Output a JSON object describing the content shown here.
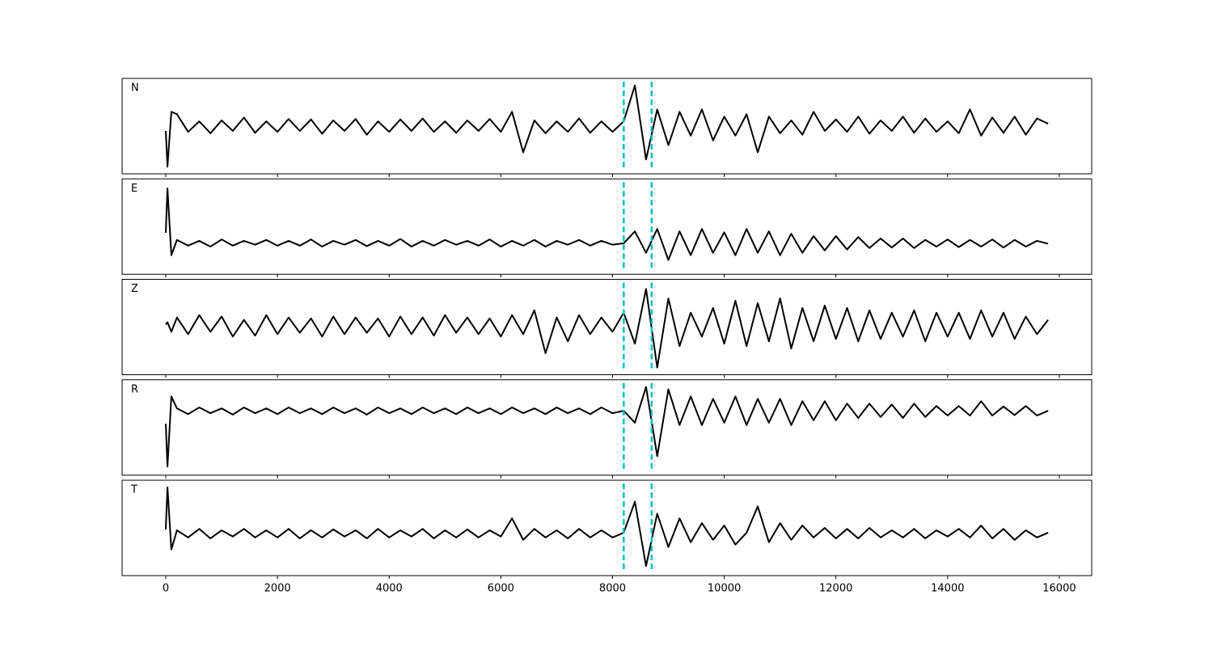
{
  "chart_data": {
    "type": "line",
    "color": "#000000",
    "vline_color": "#00bfbf",
    "xlim": [
      -782,
      16580
    ],
    "xticks": [
      0,
      2000,
      4000,
      6000,
      8000,
      10000,
      12000,
      14000,
      16000
    ],
    "ylim": [
      -1,
      1
    ],
    "vlines": [
      8200,
      8700
    ],
    "x": [
      0,
      30,
      100,
      200,
      400,
      600,
      800,
      1000,
      1200,
      1400,
      1600,
      1800,
      2000,
      2200,
      2400,
      2600,
      2800,
      3000,
      3200,
      3400,
      3600,
      3800,
      4000,
      4200,
      4400,
      4600,
      4800,
      5000,
      5200,
      5400,
      5600,
      5800,
      6000,
      6200,
      6400,
      6600,
      6800,
      7000,
      7200,
      7400,
      7600,
      7800,
      8000,
      8200,
      8400,
      8600,
      8800,
      9000,
      9200,
      9400,
      9600,
      9800,
      10000,
      10200,
      10400,
      10600,
      10800,
      11000,
      11200,
      11400,
      11600,
      11800,
      12000,
      12200,
      12400,
      12600,
      12800,
      13000,
      13200,
      13400,
      13600,
      13800,
      14000,
      14200,
      14400,
      14600,
      14800,
      15000,
      15200,
      15400,
      15600,
      15800
    ],
    "panels": [
      {
        "label": "N",
        "values": [
          -0.1,
          -0.85,
          0.3,
          0.25,
          -0.12,
          0.1,
          -0.15,
          0.12,
          -0.1,
          0.18,
          -0.14,
          0.1,
          -0.12,
          0.15,
          -0.1,
          0.14,
          -0.16,
          0.12,
          -0.1,
          0.15,
          -0.18,
          0.1,
          -0.12,
          0.14,
          -0.1,
          0.16,
          -0.12,
          0.1,
          -0.14,
          0.12,
          -0.1,
          0.15,
          -0.12,
          0.3,
          -0.55,
          0.12,
          -0.15,
          0.1,
          -0.12,
          0.16,
          -0.14,
          0.1,
          -0.12,
          0.1,
          0.85,
          -0.7,
          0.35,
          -0.4,
          0.3,
          -0.2,
          0.35,
          -0.3,
          0.2,
          -0.2,
          0.25,
          -0.55,
          0.2,
          -0.15,
          0.12,
          -0.18,
          0.3,
          -0.1,
          0.14,
          -0.12,
          0.2,
          -0.16,
          0.12,
          -0.1,
          0.2,
          -0.14,
          0.16,
          -0.12,
          0.1,
          -0.15,
          0.35,
          -0.2,
          0.18,
          -0.14,
          0.2,
          -0.18,
          0.16,
          0.05
        ]
      },
      {
        "label": "E",
        "values": [
          -0.13,
          0.8,
          -0.6,
          -0.28,
          -0.4,
          -0.3,
          -0.42,
          -0.27,
          -0.4,
          -0.3,
          -0.38,
          -0.28,
          -0.4,
          -0.3,
          -0.4,
          -0.27,
          -0.42,
          -0.3,
          -0.38,
          -0.28,
          -0.41,
          -0.3,
          -0.4,
          -0.26,
          -0.42,
          -0.3,
          -0.4,
          -0.28,
          -0.38,
          -0.3,
          -0.4,
          -0.27,
          -0.42,
          -0.3,
          -0.4,
          -0.28,
          -0.42,
          -0.3,
          -0.38,
          -0.28,
          -0.4,
          -0.3,
          -0.38,
          -0.35,
          -0.1,
          -0.55,
          -0.05,
          -0.7,
          -0.1,
          -0.6,
          -0.05,
          -0.55,
          -0.12,
          -0.6,
          -0.05,
          -0.55,
          -0.1,
          -0.6,
          -0.15,
          -0.55,
          -0.2,
          -0.5,
          -0.2,
          -0.48,
          -0.22,
          -0.45,
          -0.25,
          -0.44,
          -0.25,
          -0.45,
          -0.28,
          -0.42,
          -0.27,
          -0.43,
          -0.28,
          -0.42,
          -0.27,
          -0.44,
          -0.28,
          -0.42,
          -0.3,
          -0.36
        ]
      },
      {
        "label": "Z",
        "values": [
          0.05,
          0.1,
          -0.1,
          0.2,
          -0.15,
          0.25,
          -0.1,
          0.22,
          -0.2,
          0.15,
          -0.18,
          0.25,
          -0.15,
          0.2,
          -0.12,
          0.18,
          -0.2,
          0.22,
          -0.15,
          0.2,
          -0.12,
          0.18,
          -0.2,
          0.22,
          -0.15,
          0.2,
          -0.18,
          0.25,
          -0.12,
          0.2,
          -0.15,
          0.18,
          -0.2,
          0.25,
          -0.15,
          0.35,
          -0.55,
          0.2,
          -0.3,
          0.25,
          -0.15,
          0.2,
          -0.1,
          0.3,
          -0.35,
          0.8,
          -0.85,
          0.6,
          -0.4,
          0.3,
          -0.2,
          0.4,
          -0.35,
          0.55,
          -0.4,
          0.5,
          -0.3,
          0.6,
          -0.45,
          0.4,
          -0.3,
          0.45,
          -0.25,
          0.4,
          -0.3,
          0.35,
          -0.25,
          0.3,
          -0.2,
          0.35,
          -0.3,
          0.3,
          -0.2,
          0.3,
          -0.25,
          0.35,
          -0.2,
          0.3,
          -0.25,
          0.22,
          -0.15,
          0.15
        ]
      },
      {
        "label": "R",
        "values": [
          0.08,
          -0.82,
          0.65,
          0.4,
          0.28,
          0.42,
          0.3,
          0.4,
          0.27,
          0.42,
          0.3,
          0.4,
          0.28,
          0.42,
          0.3,
          0.4,
          0.28,
          0.42,
          0.3,
          0.4,
          0.27,
          0.42,
          0.3,
          0.4,
          0.28,
          0.42,
          0.3,
          0.4,
          0.28,
          0.42,
          0.3,
          0.4,
          0.28,
          0.42,
          0.3,
          0.4,
          0.28,
          0.42,
          0.3,
          0.4,
          0.28,
          0.42,
          0.3,
          0.35,
          0.1,
          0.85,
          -0.6,
          0.8,
          0.05,
          0.65,
          0.05,
          0.6,
          0.1,
          0.65,
          0.05,
          0.6,
          0.1,
          0.6,
          0.05,
          0.55,
          0.15,
          0.55,
          0.15,
          0.5,
          0.2,
          0.5,
          0.22,
          0.48,
          0.2,
          0.5,
          0.22,
          0.45,
          0.25,
          0.45,
          0.25,
          0.55,
          0.25,
          0.44,
          0.26,
          0.45,
          0.25,
          0.35
        ]
      },
      {
        "label": "T",
        "values": [
          -0.03,
          0.85,
          -0.45,
          -0.05,
          -0.2,
          -0.02,
          -0.22,
          -0.05,
          -0.18,
          -0.02,
          -0.2,
          -0.05,
          -0.2,
          -0.02,
          -0.22,
          -0.05,
          -0.2,
          -0.03,
          -0.18,
          -0.05,
          -0.22,
          -0.02,
          -0.2,
          -0.05,
          -0.18,
          -0.02,
          -0.22,
          -0.05,
          -0.2,
          -0.03,
          -0.2,
          -0.05,
          -0.18,
          0.2,
          -0.25,
          -0.02,
          -0.2,
          -0.05,
          -0.22,
          -0.02,
          -0.2,
          -0.05,
          -0.2,
          -0.1,
          0.55,
          -0.8,
          0.3,
          -0.4,
          0.2,
          -0.3,
          0.1,
          -0.25,
          0.05,
          -0.35,
          -0.1,
          0.45,
          -0.3,
          0.1,
          -0.25,
          0.05,
          -0.2,
          0.0,
          -0.22,
          -0.02,
          -0.22,
          0.0,
          -0.2,
          -0.05,
          -0.2,
          -0.02,
          -0.22,
          -0.05,
          -0.18,
          -0.02,
          -0.2,
          0.05,
          -0.22,
          -0.02,
          -0.25,
          -0.05,
          -0.2,
          -0.1
        ]
      }
    ]
  }
}
